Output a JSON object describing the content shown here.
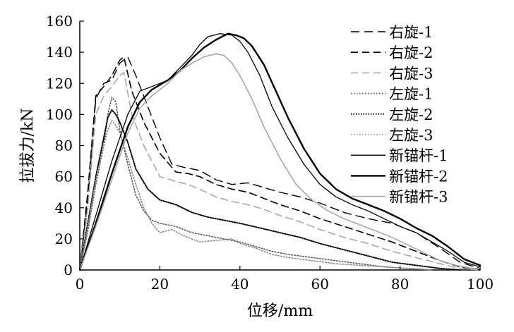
{
  "chart_data": {
    "type": "line",
    "xlabel": "位移/mm",
    "ylabel": "拉拔力/kN",
    "xlim": [
      0,
      100
    ],
    "ylim": [
      0,
      160
    ],
    "xticks": [
      "0",
      "20",
      "40",
      "60",
      "80",
      "100"
    ],
    "yticks": [
      "0",
      "20",
      "40",
      "60",
      "80",
      "100",
      "120",
      "140",
      "160"
    ],
    "grid": false,
    "legend_position": "right",
    "series": [
      {
        "name": "右旋-1",
        "color": "#000000",
        "style": "dash-long",
        "points": [
          [
            0,
            0
          ],
          [
            2,
            45
          ],
          [
            4,
            110
          ],
          [
            6,
            120
          ],
          [
            8,
            122
          ],
          [
            10,
            133
          ],
          [
            12,
            137
          ],
          [
            14,
            125
          ],
          [
            17,
            105
          ],
          [
            20,
            85
          ],
          [
            23,
            68
          ],
          [
            26,
            66
          ],
          [
            30,
            64
          ],
          [
            34,
            58
          ],
          [
            38,
            55
          ],
          [
            42,
            56
          ],
          [
            46,
            53
          ],
          [
            50,
            50
          ],
          [
            55,
            47
          ],
          [
            60,
            43
          ],
          [
            66,
            37
          ],
          [
            72,
            33
          ],
          [
            78,
            30
          ],
          [
            84,
            24
          ],
          [
            90,
            14
          ],
          [
            95,
            5
          ],
          [
            100,
            1
          ]
        ]
      },
      {
        "name": "右旋-2",
        "color": "#000000",
        "style": "dash",
        "points": [
          [
            0,
            0
          ],
          [
            2,
            50
          ],
          [
            4,
            112
          ],
          [
            6,
            118
          ],
          [
            8,
            125
          ],
          [
            10,
            135
          ],
          [
            11,
            137
          ],
          [
            13,
            115
          ],
          [
            16,
            95
          ],
          [
            20,
            75
          ],
          [
            24,
            63
          ],
          [
            27,
            62
          ],
          [
            30,
            60
          ],
          [
            34,
            55
          ],
          [
            38,
            52
          ],
          [
            42,
            50
          ],
          [
            46,
            46
          ],
          [
            50,
            42
          ],
          [
            55,
            38
          ],
          [
            60,
            33
          ],
          [
            66,
            28
          ],
          [
            72,
            23
          ],
          [
            78,
            18
          ],
          [
            84,
            12
          ],
          [
            90,
            6
          ],
          [
            95,
            2
          ],
          [
            100,
            0
          ]
        ]
      },
      {
        "name": "右旋-3",
        "color": "#a8a8a8",
        "style": "dash",
        "points": [
          [
            0,
            0
          ],
          [
            2,
            40
          ],
          [
            4,
            100
          ],
          [
            6,
            112
          ],
          [
            8,
            118
          ],
          [
            10,
            125
          ],
          [
            11,
            127
          ],
          [
            13,
            100
          ],
          [
            16,
            80
          ],
          [
            20,
            60
          ],
          [
            24,
            57
          ],
          [
            27,
            55
          ],
          [
            30,
            52
          ],
          [
            34,
            47
          ],
          [
            38,
            44
          ],
          [
            42,
            42
          ],
          [
            46,
            39
          ],
          [
            50,
            35
          ],
          [
            55,
            31
          ],
          [
            60,
            26
          ],
          [
            66,
            21
          ],
          [
            72,
            17
          ],
          [
            78,
            12
          ],
          [
            84,
            8
          ],
          [
            90,
            4
          ],
          [
            95,
            1
          ],
          [
            100,
            0
          ]
        ]
      },
      {
        "name": "左旋-1",
        "color": "#555555",
        "style": "dot",
        "points": [
          [
            0,
            0
          ],
          [
            2,
            25
          ],
          [
            4,
            55
          ],
          [
            6,
            80
          ],
          [
            7,
            100
          ],
          [
            8,
            111
          ],
          [
            9,
            108
          ],
          [
            10,
            90
          ],
          [
            12,
            68
          ],
          [
            14,
            48
          ],
          [
            16,
            38
          ],
          [
            18,
            32
          ],
          [
            20,
            30
          ],
          [
            24,
            28
          ],
          [
            28,
            24
          ],
          [
            32,
            22
          ],
          [
            36,
            20
          ],
          [
            40,
            18
          ],
          [
            44,
            15
          ],
          [
            48,
            12
          ],
          [
            52,
            10
          ],
          [
            58,
            8
          ],
          [
            64,
            6
          ],
          [
            70,
            4
          ],
          [
            76,
            2
          ],
          [
            82,
            1
          ],
          [
            88,
            0
          ]
        ]
      },
      {
        "name": "左旋-2",
        "color": "#000000",
        "style": "dot-dense",
        "points": [
          [
            0,
            0
          ],
          [
            2,
            30
          ],
          [
            4,
            60
          ],
          [
            6,
            85
          ],
          [
            7,
            98
          ],
          [
            8,
            103
          ],
          [
            9,
            100
          ],
          [
            10,
            95
          ],
          [
            12,
            82
          ],
          [
            14,
            65
          ],
          [
            17,
            52
          ],
          [
            20,
            45
          ],
          [
            24,
            42
          ],
          [
            28,
            37
          ],
          [
            32,
            34
          ],
          [
            36,
            32
          ],
          [
            40,
            30
          ],
          [
            45,
            27
          ],
          [
            50,
            24
          ],
          [
            55,
            21
          ],
          [
            60,
            17
          ],
          [
            66,
            13
          ],
          [
            72,
            9
          ],
          [
            78,
            5
          ],
          [
            84,
            3
          ],
          [
            90,
            1
          ],
          [
            95,
            0
          ]
        ]
      },
      {
        "name": "左旋-3",
        "color": "#888888",
        "style": "dot",
        "points": [
          [
            0,
            0
          ],
          [
            2,
            28
          ],
          [
            4,
            58
          ],
          [
            6,
            80
          ],
          [
            7,
            90
          ],
          [
            8,
            96
          ],
          [
            9,
            93
          ],
          [
            10,
            88
          ],
          [
            12,
            72
          ],
          [
            14,
            55
          ],
          [
            16,
            40
          ],
          [
            18,
            30
          ],
          [
            20,
            24
          ],
          [
            23,
            26
          ],
          [
            26,
            22
          ],
          [
            30,
            18
          ],
          [
            34,
            19
          ],
          [
            38,
            20
          ],
          [
            40,
            17
          ],
          [
            44,
            14
          ],
          [
            48,
            10
          ],
          [
            52,
            8
          ],
          [
            58,
            6
          ],
          [
            64,
            4
          ],
          [
            70,
            3
          ],
          [
            76,
            2
          ],
          [
            82,
            1
          ],
          [
            88,
            0
          ]
        ]
      },
      {
        "name": "新锚杆-1",
        "color": "#000000",
        "style": "solid-thin",
        "points": [
          [
            0,
            0
          ],
          [
            4,
            35
          ],
          [
            8,
            70
          ],
          [
            12,
            100
          ],
          [
            15,
            115
          ],
          [
            18,
            118
          ],
          [
            20,
            120
          ],
          [
            22,
            122
          ],
          [
            25,
            130
          ],
          [
            28,
            138
          ],
          [
            30,
            145
          ],
          [
            32,
            150
          ],
          [
            35,
            152
          ],
          [
            38,
            151
          ],
          [
            40,
            147
          ],
          [
            42,
            140
          ],
          [
            45,
            125
          ],
          [
            48,
            105
          ],
          [
            52,
            85
          ],
          [
            56,
            68
          ],
          [
            60,
            55
          ],
          [
            64,
            47
          ],
          [
            68,
            42
          ],
          [
            72,
            38
          ],
          [
            76,
            33
          ],
          [
            80,
            28
          ],
          [
            84,
            24
          ],
          [
            88,
            18
          ],
          [
            92,
            12
          ],
          [
            96,
            5
          ],
          [
            100,
            2
          ]
        ]
      },
      {
        "name": "新锚杆-2",
        "color": "#000000",
        "style": "solid-thick",
        "points": [
          [
            0,
            0
          ],
          [
            4,
            30
          ],
          [
            8,
            62
          ],
          [
            12,
            92
          ],
          [
            15,
            108
          ],
          [
            18,
            116
          ],
          [
            20,
            119
          ],
          [
            22,
            122
          ],
          [
            25,
            128
          ],
          [
            28,
            136
          ],
          [
            31,
            143
          ],
          [
            34,
            148
          ],
          [
            37,
            152
          ],
          [
            39,
            151
          ],
          [
            41,
            149
          ],
          [
            43,
            144
          ],
          [
            46,
            132
          ],
          [
            49,
            115
          ],
          [
            52,
            98
          ],
          [
            56,
            78
          ],
          [
            60,
            62
          ],
          [
            64,
            52
          ],
          [
            68,
            46
          ],
          [
            72,
            42
          ],
          [
            76,
            38
          ],
          [
            80,
            33
          ],
          [
            84,
            27
          ],
          [
            88,
            22
          ],
          [
            92,
            15
          ],
          [
            96,
            7
          ],
          [
            100,
            3
          ]
        ]
      },
      {
        "name": "新锚杆-3",
        "color": "#a8a8a8",
        "style": "solid",
        "points": [
          [
            0,
            0
          ],
          [
            4,
            28
          ],
          [
            8,
            58
          ],
          [
            12,
            88
          ],
          [
            15,
            104
          ],
          [
            18,
            112
          ],
          [
            20,
            116
          ],
          [
            22,
            120
          ],
          [
            25,
            128
          ],
          [
            28,
            133
          ],
          [
            31,
            137
          ],
          [
            34,
            139
          ],
          [
            36,
            138
          ],
          [
            38,
            133
          ],
          [
            40,
            125
          ],
          [
            43,
            110
          ],
          [
            46,
            92
          ],
          [
            50,
            72
          ],
          [
            54,
            55
          ],
          [
            58,
            45
          ],
          [
            62,
            38
          ],
          [
            66,
            33
          ],
          [
            70,
            29
          ],
          [
            74,
            25
          ],
          [
            78,
            21
          ],
          [
            82,
            16
          ],
          [
            86,
            11
          ],
          [
            90,
            6
          ],
          [
            94,
            3
          ],
          [
            98,
            1
          ],
          [
            100,
            1
          ]
        ]
      }
    ]
  }
}
